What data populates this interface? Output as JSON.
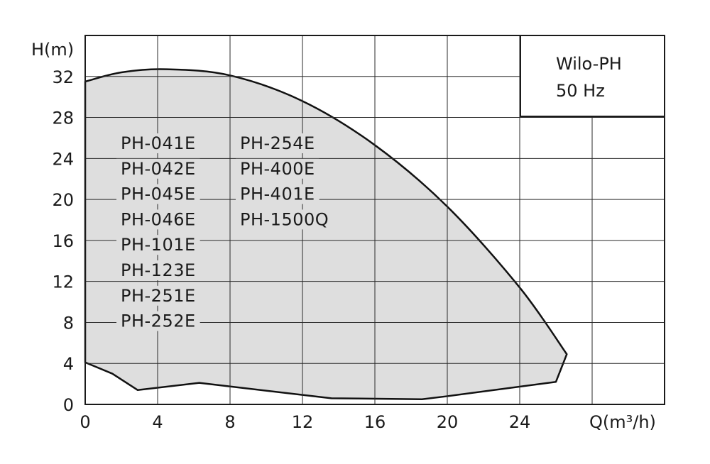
{
  "chart_data": {
    "type": "area",
    "title": "",
    "xlabel": "Q(m³/h)",
    "ylabel": "H(m)",
    "xlim": [
      0,
      32
    ],
    "ylim": [
      0,
      36
    ],
    "x_ticks": [
      0,
      4,
      8,
      12,
      16,
      20,
      24
    ],
    "y_ticks": [
      0,
      4,
      8,
      12,
      16,
      20,
      24,
      28,
      32
    ],
    "grid": true,
    "info_box": {
      "position": "top-right",
      "lines": [
        "Wilo-PH",
        "50 Hz"
      ]
    },
    "series": [
      {
        "upper_curve": [
          [
            0,
            31.5
          ],
          [
            2,
            32.4
          ],
          [
            4.5,
            32.7
          ],
          [
            8,
            32.1
          ],
          [
            12,
            29.6
          ],
          [
            16,
            25.3
          ],
          [
            20,
            19.3
          ],
          [
            24,
            11.4
          ],
          [
            26.6,
            4.9
          ]
        ],
        "lower_curve": [
          [
            0,
            4.1
          ],
          [
            1.5,
            3.0
          ],
          [
            2.9,
            1.4
          ],
          [
            6.3,
            2.1
          ],
          [
            13.6,
            0.6
          ],
          [
            18.6,
            0.5
          ],
          [
            20,
            0.8
          ],
          [
            26,
            2.2
          ],
          [
            26.6,
            4.9
          ]
        ]
      }
    ],
    "model_labels": {
      "column_1": [
        "PH-041E",
        "PH-042E",
        "PH-045E",
        "PH-046E",
        "PH-101E",
        "PH-123E",
        "PH-251E",
        "PH-252E"
      ],
      "column_2": [
        "PH-254E",
        "PH-400E",
        "PH-401E",
        "PH-1500Q"
      ]
    }
  }
}
